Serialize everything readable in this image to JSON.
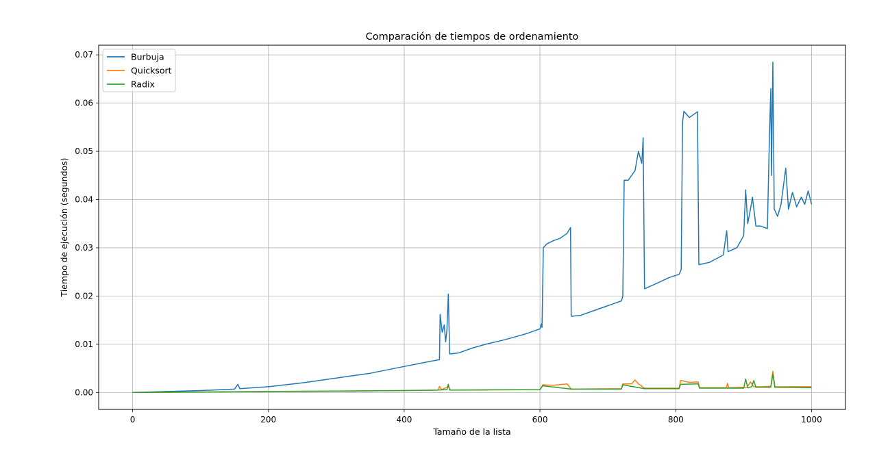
{
  "chart_data": {
    "type": "line",
    "title": "Comparación de tiempos de ordenamiento",
    "xlabel": "Tamaño de la lista",
    "ylabel": "Tiempo de ejecución (segundos)",
    "xlim": [
      -50,
      1050
    ],
    "ylim": [
      -0.0035,
      0.072
    ],
    "xticks": [
      0,
      200,
      400,
      600,
      800,
      1000
    ],
    "yticks": [
      0.0,
      0.01,
      0.02,
      0.03,
      0.04,
      0.05,
      0.06,
      0.07
    ],
    "xtick_labels": [
      "0",
      "200",
      "400",
      "600",
      "800",
      "1000"
    ],
    "ytick_labels": [
      "0.00",
      "0.01",
      "0.02",
      "0.03",
      "0.04",
      "0.05",
      "0.06",
      "0.07"
    ],
    "grid": true,
    "legend_position": "top-left",
    "series": [
      {
        "name": "Burbuja",
        "color": "#1f77b4",
        "points": [
          [
            0,
            0.0
          ],
          [
            50,
            0.0002
          ],
          [
            100,
            0.0004
          ],
          [
            150,
            0.0007
          ],
          [
            155,
            0.0017
          ],
          [
            158,
            0.0008
          ],
          [
            200,
            0.0012
          ],
          [
            250,
            0.002
          ],
          [
            300,
            0.003
          ],
          [
            350,
            0.004
          ],
          [
            400,
            0.0054
          ],
          [
            440,
            0.0065
          ],
          [
            452,
            0.0068
          ],
          [
            453,
            0.0162
          ],
          [
            456,
            0.0125
          ],
          [
            459,
            0.014
          ],
          [
            461,
            0.0105
          ],
          [
            463,
            0.013
          ],
          [
            465,
            0.0204
          ],
          [
            467,
            0.008
          ],
          [
            480,
            0.0082
          ],
          [
            500,
            0.0092
          ],
          [
            520,
            0.01
          ],
          [
            550,
            0.011
          ],
          [
            580,
            0.0122
          ],
          [
            600,
            0.0132
          ],
          [
            602,
            0.0142
          ],
          [
            603,
            0.0135
          ],
          [
            605,
            0.03
          ],
          [
            610,
            0.0308
          ],
          [
            620,
            0.0315
          ],
          [
            630,
            0.032
          ],
          [
            640,
            0.033
          ],
          [
            645,
            0.0342
          ],
          [
            646,
            0.0158
          ],
          [
            660,
            0.016
          ],
          [
            680,
            0.017
          ],
          [
            700,
            0.018
          ],
          [
            720,
            0.019
          ],
          [
            722,
            0.02
          ],
          [
            724,
            0.044
          ],
          [
            730,
            0.044
          ],
          [
            740,
            0.046
          ],
          [
            745,
            0.05
          ],
          [
            750,
            0.0475
          ],
          [
            752,
            0.0528
          ],
          [
            754,
            0.0215
          ],
          [
            770,
            0.0225
          ],
          [
            790,
            0.0238
          ],
          [
            805,
            0.0245
          ],
          [
            808,
            0.0255
          ],
          [
            810,
            0.056
          ],
          [
            812,
            0.0583
          ],
          [
            820,
            0.057
          ],
          [
            825,
            0.0575
          ],
          [
            832,
            0.0582
          ],
          [
            834,
            0.0265
          ],
          [
            850,
            0.027
          ],
          [
            870,
            0.0285
          ],
          [
            875,
            0.0335
          ],
          [
            877,
            0.0292
          ],
          [
            890,
            0.03
          ],
          [
            900,
            0.0325
          ],
          [
            903,
            0.042
          ],
          [
            906,
            0.035
          ],
          [
            910,
            0.038
          ],
          [
            913,
            0.0405
          ],
          [
            918,
            0.0345
          ],
          [
            925,
            0.0345
          ],
          [
            935,
            0.034
          ],
          [
            938,
            0.053
          ],
          [
            940,
            0.063
          ],
          [
            941,
            0.045
          ],
          [
            943,
            0.0685
          ],
          [
            945,
            0.038
          ],
          [
            950,
            0.0365
          ],
          [
            955,
            0.039
          ],
          [
            962,
            0.0465
          ],
          [
            966,
            0.038
          ],
          [
            972,
            0.0415
          ],
          [
            978,
            0.0385
          ],
          [
            985,
            0.0405
          ],
          [
            990,
            0.039
          ],
          [
            995,
            0.0418
          ],
          [
            1000,
            0.039
          ]
        ]
      },
      {
        "name": "Quicksort",
        "color": "#ff7f0e",
        "points": [
          [
            0,
            0.0
          ],
          [
            100,
            0.0001
          ],
          [
            200,
            0.0002
          ],
          [
            300,
            0.0003
          ],
          [
            400,
            0.0004
          ],
          [
            450,
            0.0005
          ],
          [
            452,
            0.0013
          ],
          [
            455,
            0.0006
          ],
          [
            465,
            0.0012
          ],
          [
            468,
            0.0005
          ],
          [
            600,
            0.0006
          ],
          [
            604,
            0.0016
          ],
          [
            620,
            0.0015
          ],
          [
            640,
            0.0018
          ],
          [
            646,
            0.0007
          ],
          [
            720,
            0.0008
          ],
          [
            722,
            0.0018
          ],
          [
            735,
            0.0018
          ],
          [
            740,
            0.0026
          ],
          [
            745,
            0.0018
          ],
          [
            754,
            0.0009
          ],
          [
            805,
            0.0009
          ],
          [
            807,
            0.0025
          ],
          [
            820,
            0.0021
          ],
          [
            833,
            0.0022
          ],
          [
            835,
            0.001
          ],
          [
            875,
            0.001
          ],
          [
            876,
            0.0019
          ],
          [
            878,
            0.001
          ],
          [
            905,
            0.0011
          ],
          [
            910,
            0.0022
          ],
          [
            915,
            0.0012
          ],
          [
            925,
            0.0012
          ],
          [
            940,
            0.0013
          ],
          [
            943,
            0.0044
          ],
          [
            946,
            0.0012
          ],
          [
            1000,
            0.0012
          ]
        ]
      },
      {
        "name": "Radix",
        "color": "#2ca02c",
        "points": [
          [
            0,
            0.0
          ],
          [
            100,
            0.0001
          ],
          [
            200,
            0.0002
          ],
          [
            300,
            0.0003
          ],
          [
            400,
            0.0004
          ],
          [
            450,
            0.0005
          ],
          [
            463,
            0.0006
          ],
          [
            465,
            0.0017
          ],
          [
            467,
            0.0005
          ],
          [
            600,
            0.0006
          ],
          [
            604,
            0.0014
          ],
          [
            646,
            0.0007
          ],
          [
            720,
            0.0007
          ],
          [
            722,
            0.0016
          ],
          [
            754,
            0.0008
          ],
          [
            805,
            0.0008
          ],
          [
            807,
            0.0017
          ],
          [
            833,
            0.0018
          ],
          [
            835,
            0.0009
          ],
          [
            900,
            0.0009
          ],
          [
            903,
            0.0028
          ],
          [
            906,
            0.001
          ],
          [
            912,
            0.0012
          ],
          [
            915,
            0.0025
          ],
          [
            918,
            0.0011
          ],
          [
            940,
            0.0011
          ],
          [
            943,
            0.0038
          ],
          [
            946,
            0.0011
          ],
          [
            1000,
            0.001
          ]
        ]
      }
    ]
  }
}
